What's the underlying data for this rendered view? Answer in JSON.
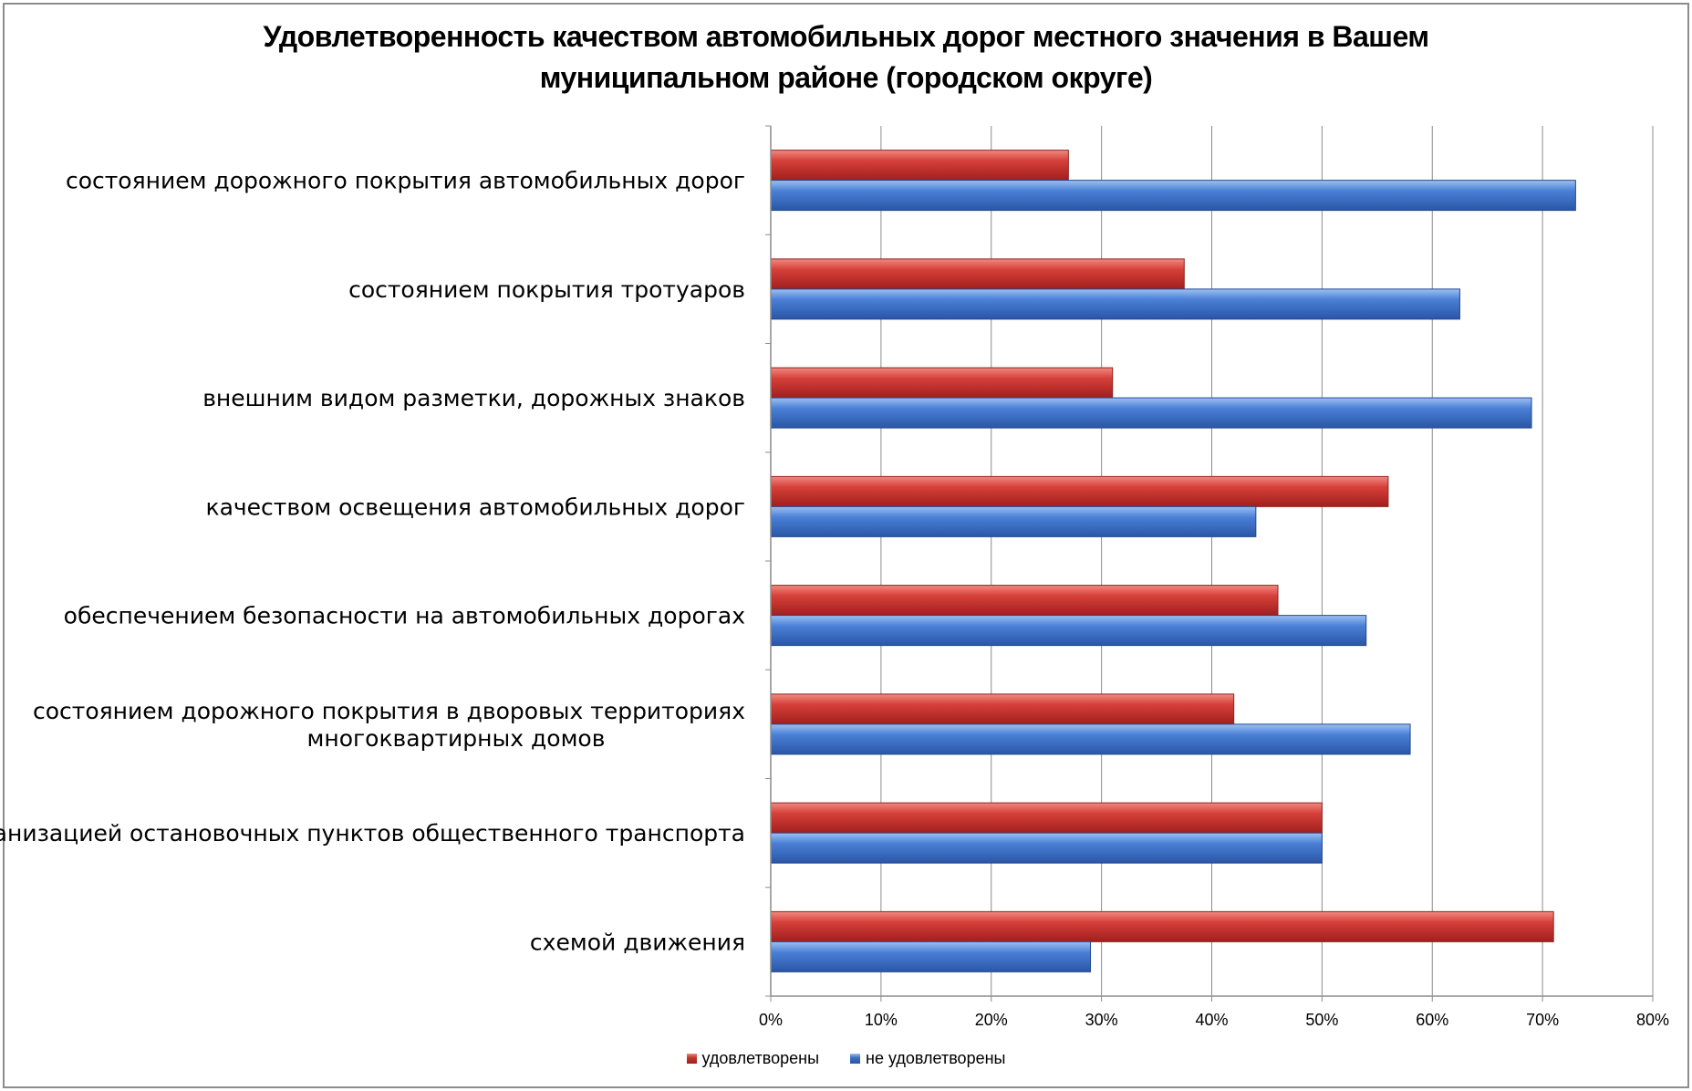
{
  "chart_data": {
    "type": "bar",
    "orientation": "horizontal",
    "title_lines": [
      "Удовлетворенность качеством автомобильных дорог местного значения в Вашем",
      "муниципальном районе (городском округе)"
    ],
    "categories": [
      [
        "состоянием дорожного покрытия автомобильных дорог"
      ],
      [
        "состоянием покрытия тротуаров"
      ],
      [
        "внешним видом разметки, дорожных знаков"
      ],
      [
        "качеством освещения автомобильных дорог"
      ],
      [
        "обеспечением безопасности на автомобильных дорогах"
      ],
      [
        "состоянием дорожного покрытия в дворовых территориях",
        "многоквартирных домов"
      ],
      [
        "организацией остановочных пунктов общественного транспорта"
      ],
      [
        "схемой движения"
      ]
    ],
    "series": [
      {
        "name": "удовлетворены",
        "color": "#c0392b",
        "values": [
          27,
          37.5,
          31,
          56,
          46,
          42,
          50,
          71
        ]
      },
      {
        "name": "не удовлетворены",
        "color": "#3f70c4",
        "values": [
          73,
          62.5,
          69,
          44,
          54,
          58,
          50,
          29
        ]
      }
    ],
    "xlim": [
      0,
      80
    ],
    "xticks": [
      0,
      10,
      20,
      30,
      40,
      50,
      60,
      70,
      80
    ],
    "xtick_labels": [
      "0%",
      "10%",
      "20%",
      "30%",
      "40%",
      "50%",
      "60%",
      "70%",
      "80%"
    ],
    "grid": true,
    "legend_position": "bottom"
  }
}
